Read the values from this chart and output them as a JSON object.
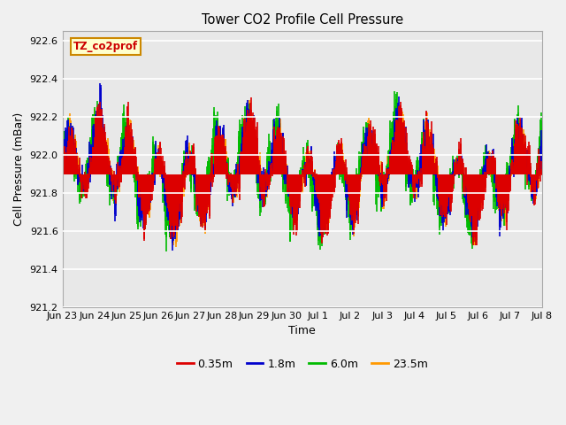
{
  "title": "Tower CO2 Profile Cell Pressure",
  "xlabel": "Time",
  "ylabel": "Cell Pressure (mBar)",
  "ylim": [
    921.2,
    922.65
  ],
  "yticks": [
    921.2,
    921.4,
    921.6,
    921.8,
    922.0,
    922.2,
    922.4,
    922.6
  ],
  "annotation_text": "TZ_co2prof",
  "annotation_bg": "#ffffcc",
  "annotation_border": "#cc8800",
  "fig_bg": "#f0f0f0",
  "plot_bg": "#e8e8e8",
  "grid_color": "#ffffff",
  "series_colors": [
    "#dd0000",
    "#0000cc",
    "#00bb00",
    "#ff9900"
  ],
  "series_labels": [
    "0.35m",
    "1.8m",
    "6.0m",
    "23.5m"
  ],
  "x_tick_labels": [
    "Jun 23",
    "Jun 24",
    "Jun 25",
    "Jun 26",
    "Jun 27",
    "Jun 28",
    "Jun 29",
    "Jun 30",
    "Jul 1",
    "Jul 2",
    "Jul 3",
    "Jul 4",
    "Jul 5",
    "Jul 6",
    "Jul 7",
    "Jul 8"
  ],
  "num_days": 16,
  "points_per_day": 96,
  "seed": 42,
  "base_pressure": 921.9,
  "daily_amp": 0.18,
  "noise_scale": 0.08,
  "lw": 1.2
}
